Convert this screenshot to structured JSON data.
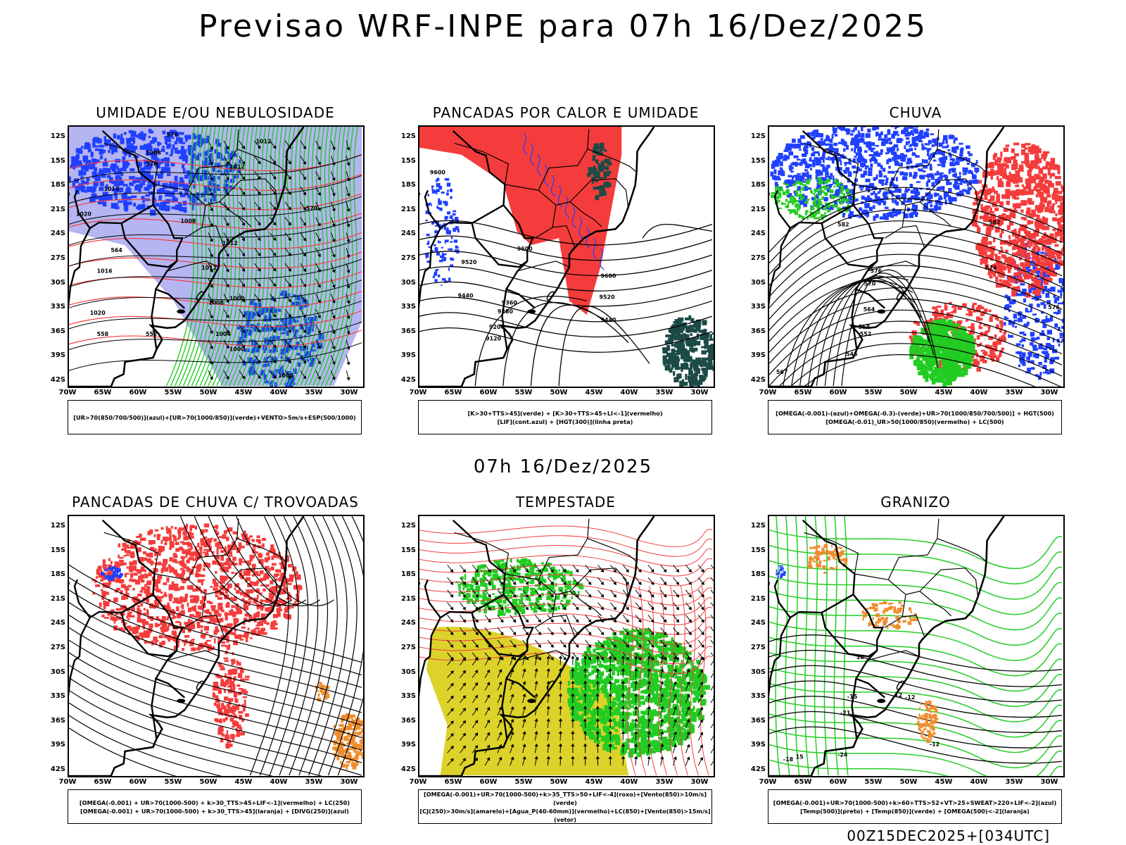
{
  "title": "Previsao WRF-INPE  para 07h 16/Dez/2025",
  "mid_timestamp": "07h 16/Dez/2025",
  "run_stamp": "00Z15DEC2025+[034UTC]",
  "lat_ticks": [
    "12S",
    "15S",
    "18S",
    "21S",
    "24S",
    "27S",
    "30S",
    "33S",
    "36S",
    "39S",
    "42S"
  ],
  "lon_ticks": [
    "70W",
    "65W",
    "60W",
    "55W",
    "50W",
    "45W",
    "40W",
    "35W",
    "30W"
  ],
  "colors": {
    "blue": "#2040ff",
    "lightblue": "#a8a8f0",
    "green": "#22cc22",
    "red": "#f43c3c",
    "yellow": "#dcd22a",
    "orange": "#f08c2c",
    "darkteal": "#1c4a46"
  },
  "panels": [
    {
      "id": "umidade",
      "title": "UMIDADE E/OU NEBULOSIDADE",
      "legend": [
        "[UR>70(850/700/500)](azul)+[UR>70(1000/850)](verde)+VENTO>5m/s+ESP(500/1000)"
      ],
      "contour_labels": [
        "1012",
        "1016",
        "1012",
        "1012",
        "1020",
        "1008",
        "1012",
        "1008",
        "1004",
        "1000",
        "1000",
        "1004",
        "1008",
        "1020",
        "1016",
        "576",
        "576",
        "564",
        "558",
        "552",
        "570"
      ]
    },
    {
      "id": "pancadas-calor",
      "title": "PANCADAS POR CALOR E UMIDADE",
      "legend": [
        "[K>30+TTS>45](verde) + [K>30+TTS>45+LI<-1](vermelho)",
        "[LIF](cont.azul) + [HGT(300)](linha preta)"
      ],
      "contour_labels": [
        "9600",
        "9520",
        "9440",
        "9360",
        "9280",
        "9200",
        "9120",
        "9600",
        "9520",
        "9440",
        "9600"
      ]
    },
    {
      "id": "chuva",
      "title": "CHUVA",
      "legend": [
        "[OMEGA(-0.001)-(azul)+OMEGA(-0.3)-(verde)+UR>70(1000/850/700/500)] + HGT(500)",
        "[OMEGA(-0.01)_UR>50(1000/850)(vermelho) + LC(500)"
      ],
      "contour_labels": [
        "582",
        "576",
        "570",
        "564",
        "558",
        "552",
        "546",
        "582",
        "576",
        "576",
        "567"
      ]
    },
    {
      "id": "trovoadas",
      "title": "PANCADAS DE CHUVA C/ TROVOADAS",
      "legend": [
        "[OMEGA(-0.001) + UR>70(1000-500) + k>30_TTS>45+LIF<-1](vermelho) + LC(250)",
        "[OMEGA(-0.001) + UR>70(1000-500) + k>30_TTS>45](laranja) + [DIVG(250)](azul)"
      ],
      "contour_labels": []
    },
    {
      "id": "tempestade",
      "title": "TEMPESTADE",
      "legend": [
        "[OMEGA(-0.001)+UR>70(1000-500)+k>35_TTS>50+LIF<-4](roxo)+[Vento(850)>10m/s](verde)",
        "[CJ(250)>30m/s](amarelo)+[Agua_P(40-60mm)](vermelho)+LC(850)+[Vento(850)>15m/s](vetor)"
      ],
      "contour_labels": []
    },
    {
      "id": "granizo",
      "title": "GRANIZO",
      "legend": [
        "[OMEGA(-0.001)+UR>70(1000-500)+k>60+TTS>52+VT>25+SWEAT>220+LIF<-2](azul)",
        "[Temp(500)](preto) + [Temp(850)](verde) + [OMEGA(500)<-2](laranja)"
      ],
      "contour_labels": [
        "-15",
        "-21",
        "-24",
        "-12",
        "-12",
        "-18",
        "15",
        "18",
        "12"
      ]
    }
  ]
}
